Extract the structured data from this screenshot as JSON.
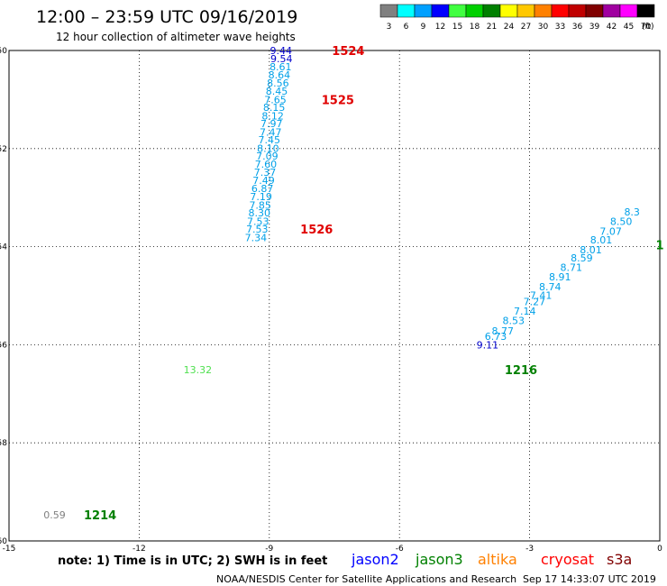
{
  "header": {
    "title": "12:00 – 23:59 UTC 09/16/2019",
    "subtitle": "12 hour collection of altimeter wave heights"
  },
  "legend": {
    "unit": "(ft)",
    "bins": [
      {
        "label": "3",
        "color": "#808080"
      },
      {
        "label": "6",
        "color": "#00ffff"
      },
      {
        "label": "9",
        "color": "#00a0ff"
      },
      {
        "label": "12",
        "color": "#0000ff"
      },
      {
        "label": "15",
        "color": "#40ff40"
      },
      {
        "label": "18",
        "color": "#00d000"
      },
      {
        "label": "21",
        "color": "#008000"
      },
      {
        "label": "24",
        "color": "#ffff00"
      },
      {
        "label": "27",
        "color": "#ffc800"
      },
      {
        "label": "30",
        "color": "#ff8000"
      },
      {
        "label": "33",
        "color": "#ff0000"
      },
      {
        "label": "36",
        "color": "#c00000"
      },
      {
        "label": "39",
        "color": "#800000"
      },
      {
        "label": "42",
        "color": "#a000a0"
      },
      {
        "label": "45",
        "color": "#ff00ff"
      },
      {
        "label": "70",
        "color": "#000000"
      }
    ]
  },
  "footer": {
    "note": "note: 1) Time is in UTC; 2) SWH is in feet",
    "credit": "NOAA/NESDIS Center for Satellite Applications and Research",
    "timestamp": "Sep 17 14:33:07 UTC 2019",
    "satellites": [
      {
        "name": "jason2",
        "color": "#0000ff"
      },
      {
        "name": "jason3",
        "color": "#008000"
      },
      {
        "name": "altika",
        "color": "#ff8000"
      },
      {
        "name": "cryosat",
        "color": "#ff0000"
      },
      {
        "name": "s3a",
        "color": "#800000"
      }
    ]
  },
  "chart_data": {
    "type": "scatter",
    "xlim": [
      -15,
      0
    ],
    "ylim": [
      -60,
      -50
    ],
    "x_ticks": [
      -15,
      -12,
      -9,
      -6,
      -3,
      0
    ],
    "y_ticks": [
      -50,
      -52,
      -54,
      -56,
      -58,
      -60
    ],
    "grid": true,
    "colors": {
      "light": "#00a0e8",
      "dark_blue": "#0000cc",
      "light_green": "#50e050",
      "grey": "#808080",
      "time_red": "#e00000",
      "time_green": "#008000"
    },
    "points": [
      {
        "x": -8.73,
        "y": -50.0,
        "label": "9.44",
        "c": "dark_blue"
      },
      {
        "x": -8.72,
        "y": -50.17,
        "label": "9.54",
        "c": "dark_blue"
      },
      {
        "x": -8.74,
        "y": -50.33,
        "label": "8.61",
        "c": "light"
      },
      {
        "x": -8.77,
        "y": -50.5,
        "label": "8.64",
        "c": "light"
      },
      {
        "x": -8.8,
        "y": -50.66,
        "label": "8.56",
        "c": "light"
      },
      {
        "x": -8.83,
        "y": -50.83,
        "label": "8.45",
        "c": "light"
      },
      {
        "x": -8.86,
        "y": -51.0,
        "label": "7.65",
        "c": "light"
      },
      {
        "x": -8.89,
        "y": -51.16,
        "label": "8.15",
        "c": "light"
      },
      {
        "x": -8.92,
        "y": -51.33,
        "label": "8.12",
        "c": "light"
      },
      {
        "x": -8.95,
        "y": -51.49,
        "label": "7.97",
        "c": "light"
      },
      {
        "x": -8.97,
        "y": -51.66,
        "label": "7.47",
        "c": "light"
      },
      {
        "x": -9.0,
        "y": -51.82,
        "label": "7.45",
        "c": "light"
      },
      {
        "x": -9.03,
        "y": -51.99,
        "label": "8.10",
        "c": "light"
      },
      {
        "x": -9.05,
        "y": -52.15,
        "label": "7.09",
        "c": "light"
      },
      {
        "x": -9.08,
        "y": -52.32,
        "label": "7.60",
        "c": "light"
      },
      {
        "x": -9.1,
        "y": -52.48,
        "label": "7.37",
        "c": "light"
      },
      {
        "x": -9.13,
        "y": -52.65,
        "label": "7.49",
        "c": "light"
      },
      {
        "x": -9.16,
        "y": -52.81,
        "label": "6.87",
        "c": "light"
      },
      {
        "x": -9.19,
        "y": -52.98,
        "label": "7.19",
        "c": "light"
      },
      {
        "x": -9.21,
        "y": -53.15,
        "label": "7.85",
        "c": "light"
      },
      {
        "x": -9.23,
        "y": -53.31,
        "label": "8.30",
        "c": "light"
      },
      {
        "x": -9.26,
        "y": -53.48,
        "label": "7.53",
        "c": "light"
      },
      {
        "x": -9.28,
        "y": -53.64,
        "label": "7.53",
        "c": "light"
      },
      {
        "x": -9.31,
        "y": -53.81,
        "label": "7.34",
        "c": "light"
      },
      {
        "x": -3.97,
        "y": -56.0,
        "label": "9.11",
        "c": "dark_blue"
      },
      {
        "x": -3.78,
        "y": -55.83,
        "label": "6.73",
        "c": "light"
      },
      {
        "x": -3.62,
        "y": -55.72,
        "label": "8.77",
        "c": "light"
      },
      {
        "x": -3.37,
        "y": -55.51,
        "label": "8.53",
        "c": "light"
      },
      {
        "x": -3.11,
        "y": -55.31,
        "label": "7.14",
        "c": "light"
      },
      {
        "x": -2.89,
        "y": -55.12,
        "label": "7.27",
        "c": "light"
      },
      {
        "x": -2.74,
        "y": -54.99,
        "label": "7.41",
        "c": "light"
      },
      {
        "x": -2.53,
        "y": -54.82,
        "label": "8.74",
        "c": "light"
      },
      {
        "x": -2.3,
        "y": -54.61,
        "label": "8.91",
        "c": "light"
      },
      {
        "x": -2.04,
        "y": -54.42,
        "label": "8.71",
        "c": "light"
      },
      {
        "x": -1.8,
        "y": -54.23,
        "label": "8.59",
        "c": "light"
      },
      {
        "x": -1.59,
        "y": -54.06,
        "label": "8.01",
        "c": "light"
      },
      {
        "x": -1.35,
        "y": -53.86,
        "label": "8.01",
        "c": "light"
      },
      {
        "x": -1.13,
        "y": -53.69,
        "label": "7.07",
        "c": "light"
      },
      {
        "x": -0.89,
        "y": -53.48,
        "label": "8.50",
        "c": "light"
      },
      {
        "x": -0.64,
        "y": -53.29,
        "label": "8.3",
        "c": "light"
      },
      {
        "x": -10.65,
        "y": -56.51,
        "label": "13.32",
        "c": "light_green"
      },
      {
        "x": -13.95,
        "y": -59.47,
        "label": "0.59",
        "c": "grey"
      }
    ],
    "time_labels": [
      {
        "x": -7.18,
        "y": -50.0,
        "label": "1524",
        "c": "time_red"
      },
      {
        "x": -7.42,
        "y": -51.0,
        "label": "1525",
        "c": "time_red"
      },
      {
        "x": -7.91,
        "y": -53.64,
        "label": "1526",
        "c": "time_red"
      },
      {
        "x": -3.2,
        "y": -56.51,
        "label": "1216",
        "c": "time_green"
      },
      {
        "x": -12.9,
        "y": -59.47,
        "label": "1214",
        "c": "time_green"
      },
      {
        "x": 0.0,
        "y": -53.96,
        "label": "1",
        "c": "time_green"
      }
    ]
  }
}
